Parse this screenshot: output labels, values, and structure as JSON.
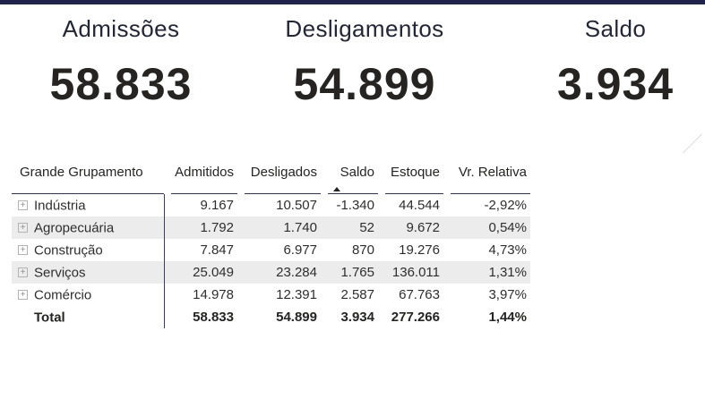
{
  "theme": {
    "accent_bar": "#21234d",
    "alt_row_background": "#ececec",
    "grid_line": "#3d3f5a",
    "text_color": "#252423"
  },
  "cards": [
    {
      "title": "Admissões",
      "value": "58.833"
    },
    {
      "title": "Desligamentos",
      "value": "54.899"
    },
    {
      "title": "Saldo",
      "value": "3.934"
    }
  ],
  "table": {
    "columns": [
      "Grande Grupamento",
      "Admitidos",
      "Desligados",
      "Saldo",
      "Estoque",
      "Vr. Relativa"
    ],
    "sort": {
      "column": "Saldo",
      "direction": "ascending"
    },
    "rows": [
      {
        "label": "Indústria",
        "admitidos": "9.167",
        "desligados": "10.507",
        "saldo": "-1.340",
        "estoque": "44.544",
        "vr_relativa": "-2,92%"
      },
      {
        "label": "Agropecuária",
        "admitidos": "1.792",
        "desligados": "1.740",
        "saldo": "52",
        "estoque": "9.672",
        "vr_relativa": "0,54%"
      },
      {
        "label": "Construção",
        "admitidos": "7.847",
        "desligados": "6.977",
        "saldo": "870",
        "estoque": "19.276",
        "vr_relativa": "4,73%"
      },
      {
        "label": "Serviços",
        "admitidos": "25.049",
        "desligados": "23.284",
        "saldo": "1.765",
        "estoque": "136.011",
        "vr_relativa": "1,31%"
      },
      {
        "label": "Comércio",
        "admitidos": "14.978",
        "desligados": "12.391",
        "saldo": "2.587",
        "estoque": "67.763",
        "vr_relativa": "3,97%"
      }
    ],
    "total": {
      "label": "Total",
      "admitidos": "58.833",
      "desligados": "54.899",
      "saldo": "3.934",
      "estoque": "277.266",
      "vr_relativa": "1,44%"
    }
  }
}
